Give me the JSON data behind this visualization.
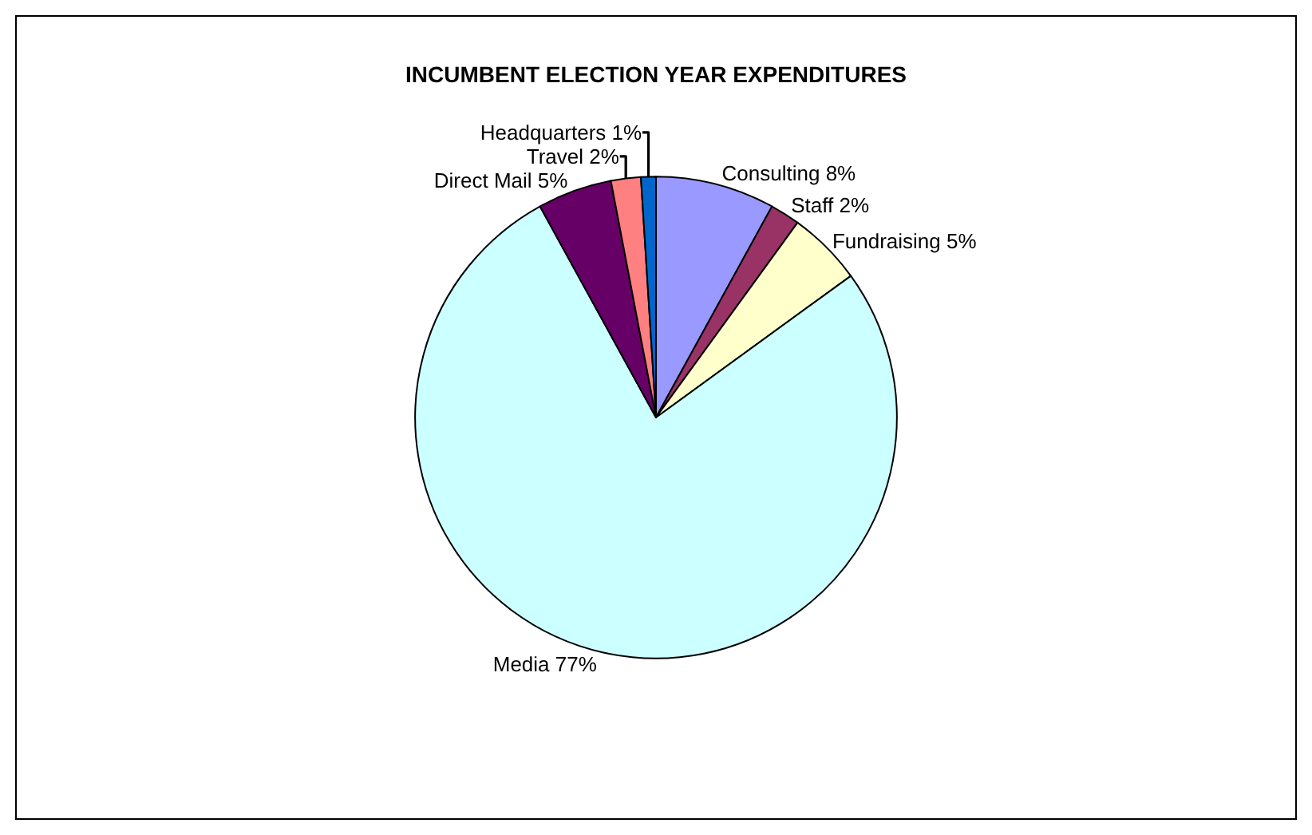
{
  "chart_data": {
    "type": "pie",
    "title": "INCUMBENT ELECTION YEAR EXPENDITURES",
    "categories": [
      "Consulting",
      "Staff",
      "Fundraising",
      "Media",
      "Direct Mail",
      "Travel",
      "Headquarters"
    ],
    "values": [
      8,
      2,
      5,
      77,
      5,
      2,
      1
    ],
    "value_labels": [
      "8%",
      "2%",
      "5%",
      "77%",
      "5%",
      "2%",
      "1%"
    ],
    "colors": [
      "#9999ff",
      "#993366",
      "#ffffcc",
      "#ccffff",
      "#660066",
      "#ff8080",
      "#0066cc"
    ],
    "legend": false
  }
}
